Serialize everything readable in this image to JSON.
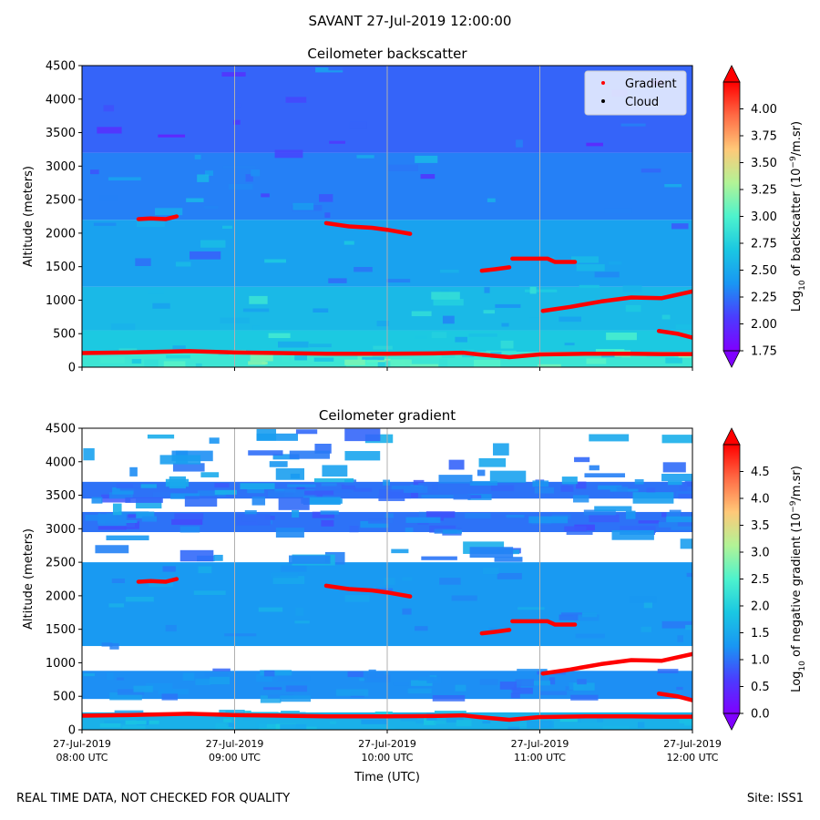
{
  "figure": {
    "title": "SAVANT 27-Jul-2019 12:00:00",
    "footer_left": "REAL TIME DATA, NOT CHECKED FOR QUALITY",
    "footer_right": "Site: ISS1"
  },
  "chart_data": [
    {
      "type": "heatmap",
      "title": "Ceilometer backscatter",
      "ylabel": "Altitude (meters)",
      "xlabel": "",
      "x_ticks": [],
      "y_ticks": [
        "0",
        "500",
        "1000",
        "1500",
        "2000",
        "2500",
        "3000",
        "3500",
        "4000",
        "4500"
      ],
      "ylim": [
        0,
        4500
      ],
      "xlim_hours": [
        8,
        12
      ],
      "grid": "vertical",
      "legend": {
        "placement": "top-right",
        "entries": [
          {
            "label": "Gradient",
            "color": "#ff0000"
          },
          {
            "label": "Cloud",
            "color": "#000000"
          }
        ]
      },
      "colorbar": {
        "label": "Log10 of backscatter (10^-9/m.sr)",
        "label_main": "Log",
        "label_sub": "10",
        "label_rest": " of backscatter (10",
        "label_sup": "−9",
        "label_end": "/m.sr)",
        "min": 1.75,
        "max": 4.25,
        "ticks": [
          "1.75",
          "2.00",
          "2.25",
          "2.50",
          "2.75",
          "3.00",
          "3.25",
          "3.50",
          "3.75",
          "4.00"
        ]
      },
      "bands": [
        {
          "alt": [
            0,
            230
          ],
          "value": 2.9
        },
        {
          "alt": [
            230,
            550
          ],
          "value": 2.7
        },
        {
          "alt": [
            550,
            1200
          ],
          "value": 2.6
        },
        {
          "alt": [
            1200,
            2200
          ],
          "value": 2.45
        },
        {
          "alt": [
            2200,
            3200
          ],
          "value": 2.3
        },
        {
          "alt": [
            3200,
            4500
          ],
          "value": 2.2
        }
      ],
      "gradient_series": [
        {
          "name": "ground",
          "x": [
            8.0,
            8.3,
            8.5,
            8.7,
            9.0,
            9.3,
            9.6,
            10.0,
            10.3,
            10.5,
            10.6,
            10.8,
            11.0,
            11.3,
            11.6,
            11.8,
            12.0
          ],
          "y": [
            210,
            220,
            230,
            240,
            220,
            210,
            200,
            200,
            205,
            215,
            190,
            150,
            190,
            200,
            200,
            195,
            195
          ]
        },
        {
          "name": "layer-2200",
          "x": [
            8.37,
            8.45,
            8.55,
            8.62
          ],
          "y": [
            2210,
            2220,
            2210,
            2250
          ]
        },
        {
          "name": "layer-2000",
          "x": [
            9.6,
            9.75,
            9.9,
            10.0,
            10.15
          ],
          "y": [
            2150,
            2100,
            2080,
            2050,
            1990
          ]
        },
        {
          "name": "layer-1500a",
          "x": [
            10.62,
            10.7,
            10.8
          ],
          "y": [
            1440,
            1460,
            1490
          ]
        },
        {
          "name": "layer-1600",
          "x": [
            10.82,
            10.9,
            11.05,
            11.1,
            11.23
          ],
          "y": [
            1620,
            1620,
            1620,
            1570,
            1570
          ]
        },
        {
          "name": "layer-1000",
          "x": [
            11.02,
            11.2,
            11.4,
            11.6,
            11.8,
            12.0
          ],
          "y": [
            840,
            900,
            980,
            1040,
            1030,
            1130
          ]
        },
        {
          "name": "layer-500",
          "x": [
            11.78,
            11.9,
            12.0
          ],
          "y": [
            540,
            500,
            440
          ]
        }
      ]
    },
    {
      "type": "heatmap",
      "title": "Ceilometer gradient",
      "ylabel": "Altitude (meters)",
      "xlabel": "Time (UTC)",
      "x_ticks": [
        {
          "date": "27-Jul-2019",
          "time": "08:00 UTC",
          "hour": 8
        },
        {
          "date": "27-Jul-2019",
          "time": "09:00 UTC",
          "hour": 9
        },
        {
          "date": "27-Jul-2019",
          "time": "10:00 UTC",
          "hour": 10
        },
        {
          "date": "27-Jul-2019",
          "time": "11:00 UTC",
          "hour": 11
        },
        {
          "date": "27-Jul-2019",
          "time": "12:00 UTC",
          "hour": 12
        }
      ],
      "y_ticks": [
        "0",
        "500",
        "1000",
        "1500",
        "2000",
        "2500",
        "3000",
        "3500",
        "4000",
        "4500"
      ],
      "ylim": [
        0,
        4500
      ],
      "xlim_hours": [
        8,
        12
      ],
      "grid": "vertical",
      "colorbar": {
        "label": "Log10 of negative gradient (10^-9/m.sr)",
        "label_main": "Log",
        "label_sub": "10",
        "label_rest": " of negative gradient (10",
        "label_sup": "−9",
        "label_end": "/m.sr)",
        "min": 0.0,
        "max": 5.0,
        "ticks": [
          "0.0",
          "0.5",
          "1.0",
          "1.5",
          "2.0",
          "2.5",
          "3.0",
          "3.5",
          "4.0",
          "4.5"
        ]
      },
      "bands": [
        {
          "alt": [
            0,
            260
          ],
          "value": 1.6
        },
        {
          "alt": [
            460,
            880
          ],
          "value": 1.2
        },
        {
          "alt": [
            1250,
            2500
          ],
          "value": 1.3
        },
        {
          "alt": [
            2950,
            3250
          ],
          "value": 1.0
        },
        {
          "alt": [
            3450,
            3700
          ],
          "value": 1.0
        }
      ],
      "gradient_series": [
        {
          "name": "ground",
          "x": [
            8.0,
            8.3,
            8.5,
            8.7,
            9.0,
            9.3,
            9.6,
            10.0,
            10.3,
            10.5,
            10.6,
            10.8,
            11.0,
            11.3,
            11.6,
            11.8,
            12.0
          ],
          "y": [
            210,
            220,
            230,
            240,
            220,
            210,
            200,
            200,
            205,
            215,
            190,
            150,
            190,
            200,
            200,
            195,
            195
          ]
        },
        {
          "name": "layer-2200",
          "x": [
            8.37,
            8.45,
            8.55,
            8.62
          ],
          "y": [
            2210,
            2220,
            2210,
            2250
          ]
        },
        {
          "name": "layer-2000",
          "x": [
            9.6,
            9.75,
            9.9,
            10.0,
            10.15
          ],
          "y": [
            2150,
            2100,
            2080,
            2050,
            1990
          ]
        },
        {
          "name": "layer-1500a",
          "x": [
            10.62,
            10.7,
            10.8
          ],
          "y": [
            1440,
            1460,
            1490
          ]
        },
        {
          "name": "layer-1600",
          "x": [
            10.82,
            10.9,
            11.05,
            11.1,
            11.23
          ],
          "y": [
            1620,
            1620,
            1620,
            1570,
            1570
          ]
        },
        {
          "name": "layer-1000",
          "x": [
            11.02,
            11.2,
            11.4,
            11.6,
            11.8,
            12.0
          ],
          "y": [
            840,
            900,
            980,
            1040,
            1030,
            1130
          ]
        },
        {
          "name": "layer-500",
          "x": [
            11.78,
            11.9,
            12.0
          ],
          "y": [
            540,
            500,
            440
          ]
        }
      ]
    }
  ]
}
